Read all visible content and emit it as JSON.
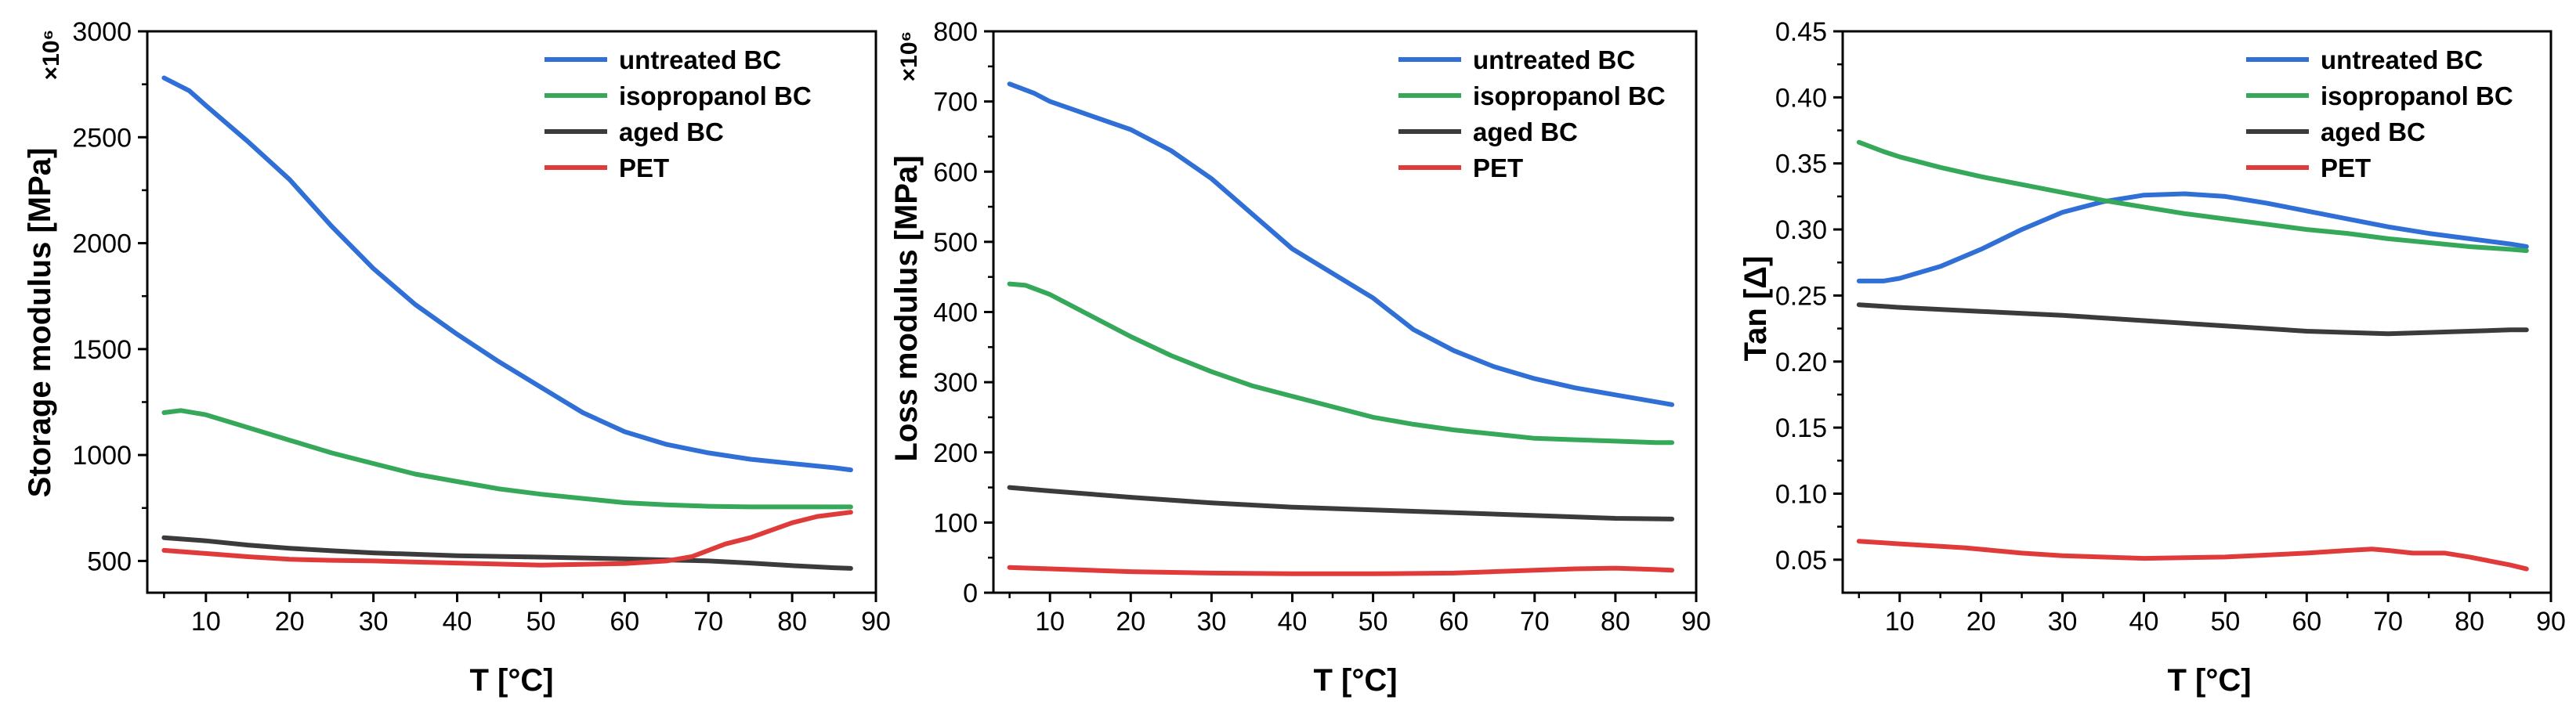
{
  "chart_data": [
    {
      "type": "line",
      "xlabel": "T [°C]",
      "ylabel": "Storage modulus [MPa]",
      "y_multiplier": "×10⁶",
      "xlim": [
        3,
        90
      ],
      "ylim": [
        350,
        3000
      ],
      "xticks": [
        10,
        20,
        30,
        40,
        50,
        60,
        70,
        80,
        90
      ],
      "yticks": [
        500,
        1000,
        1500,
        2000,
        2500,
        3000
      ],
      "legend_position": "top-right",
      "series": [
        {
          "name": "untreated BC",
          "color": "#2f6fd6",
          "x": [
            5,
            8,
            10,
            15,
            20,
            25,
            30,
            35,
            40,
            45,
            50,
            55,
            60,
            65,
            70,
            75,
            80,
            85,
            87
          ],
          "y": [
            2780,
            2720,
            2650,
            2480,
            2300,
            2080,
            1880,
            1710,
            1570,
            1440,
            1320,
            1200,
            1110,
            1050,
            1010,
            980,
            960,
            940,
            930
          ]
        },
        {
          "name": "isopropanol BC",
          "color": "#36a85a",
          "x": [
            5,
            7,
            10,
            15,
            20,
            25,
            30,
            35,
            40,
            45,
            50,
            55,
            60,
            65,
            70,
            75,
            80,
            85,
            87
          ],
          "y": [
            1200,
            1210,
            1190,
            1130,
            1070,
            1010,
            960,
            910,
            875,
            840,
            815,
            795,
            775,
            765,
            758,
            755,
            755,
            755,
            755
          ]
        },
        {
          "name": "aged BC",
          "color": "#3b3b3b",
          "x": [
            5,
            10,
            15,
            20,
            25,
            30,
            40,
            50,
            60,
            65,
            70,
            75,
            80,
            85,
            87
          ],
          "y": [
            610,
            595,
            575,
            560,
            548,
            538,
            525,
            518,
            510,
            505,
            500,
            490,
            478,
            468,
            465
          ]
        },
        {
          "name": "PET",
          "color": "#e03b3b",
          "x": [
            5,
            10,
            15,
            20,
            25,
            30,
            40,
            50,
            60,
            65,
            68,
            70,
            72,
            75,
            80,
            83,
            87
          ],
          "y": [
            550,
            535,
            520,
            508,
            503,
            500,
            490,
            480,
            488,
            500,
            520,
            550,
            580,
            610,
            680,
            710,
            730
          ]
        }
      ]
    },
    {
      "type": "line",
      "xlabel": "T [°C]",
      "ylabel": "Loss modulus [MPa]",
      "y_multiplier": "×10⁶",
      "xlim": [
        3,
        90
      ],
      "ylim": [
        0,
        800
      ],
      "xticks": [
        10,
        20,
        30,
        40,
        50,
        60,
        70,
        80,
        90
      ],
      "yticks": [
        0,
        100,
        200,
        300,
        400,
        500,
        600,
        700,
        800
      ],
      "legend_position": "top-right",
      "series": [
        {
          "name": "untreated BC",
          "color": "#2f6fd6",
          "x": [
            5,
            8,
            10,
            15,
            20,
            25,
            30,
            35,
            40,
            45,
            50,
            55,
            60,
            65,
            70,
            75,
            80,
            85,
            87
          ],
          "y": [
            725,
            712,
            700,
            680,
            660,
            630,
            590,
            540,
            490,
            455,
            420,
            375,
            345,
            322,
            305,
            292,
            282,
            272,
            268
          ]
        },
        {
          "name": "isopropanol BC",
          "color": "#36a85a",
          "x": [
            5,
            7,
            10,
            15,
            20,
            25,
            30,
            35,
            40,
            45,
            50,
            55,
            60,
            65,
            70,
            75,
            80,
            85,
            87
          ],
          "y": [
            440,
            438,
            425,
            395,
            365,
            338,
            315,
            295,
            280,
            265,
            250,
            240,
            232,
            226,
            220,
            218,
            216,
            214,
            214
          ]
        },
        {
          "name": "aged BC",
          "color": "#3b3b3b",
          "x": [
            5,
            10,
            20,
            30,
            40,
            50,
            60,
            70,
            80,
            87
          ],
          "y": [
            150,
            145,
            136,
            128,
            122,
            118,
            114,
            110,
            106,
            105
          ]
        },
        {
          "name": "PET",
          "color": "#e03b3b",
          "x": [
            5,
            10,
            20,
            30,
            40,
            50,
            60,
            70,
            75,
            80,
            85,
            87
          ],
          "y": [
            36,
            34,
            30,
            28,
            27,
            27,
            28,
            32,
            34,
            35,
            33,
            32
          ]
        }
      ]
    },
    {
      "type": "line",
      "xlabel": "T [°C]",
      "ylabel": "Tan [Δ]",
      "xlim": [
        3,
        90
      ],
      "ylim": [
        0.025,
        0.45
      ],
      "xticks": [
        10,
        20,
        30,
        40,
        50,
        60,
        70,
        80,
        90
      ],
      "yticks": [
        "0.05",
        "0.10",
        "0.15",
        "0.20",
        "0.25",
        "0.30",
        "0.35",
        "0.40",
        "0.45"
      ],
      "legend_position": "top-right",
      "series": [
        {
          "name": "untreated BC",
          "color": "#2f6fd6",
          "x": [
            5,
            8,
            10,
            15,
            20,
            25,
            30,
            35,
            40,
            45,
            50,
            55,
            60,
            65,
            70,
            75,
            80,
            85,
            87
          ],
          "y": [
            0.261,
            0.261,
            0.263,
            0.272,
            0.285,
            0.3,
            0.313,
            0.321,
            0.326,
            0.327,
            0.325,
            0.32,
            0.314,
            0.308,
            0.302,
            0.297,
            0.293,
            0.289,
            0.287
          ]
        },
        {
          "name": "isopropanol BC",
          "color": "#36a85a",
          "x": [
            5,
            8,
            10,
            15,
            20,
            25,
            30,
            35,
            40,
            45,
            50,
            55,
            60,
            65,
            70,
            75,
            80,
            85,
            87
          ],
          "y": [
            0.366,
            0.359,
            0.355,
            0.347,
            0.34,
            0.334,
            0.328,
            0.322,
            0.317,
            0.312,
            0.308,
            0.304,
            0.3,
            0.297,
            0.293,
            0.29,
            0.287,
            0.285,
            0.284
          ]
        },
        {
          "name": "aged BC",
          "color": "#3b3b3b",
          "x": [
            5,
            10,
            20,
            30,
            40,
            50,
            60,
            65,
            70,
            75,
            80,
            85,
            87
          ],
          "y": [
            0.243,
            0.241,
            0.238,
            0.235,
            0.231,
            0.227,
            0.223,
            0.222,
            0.221,
            0.222,
            0.223,
            0.224,
            0.224
          ]
        },
        {
          "name": "PET",
          "color": "#e03b3b",
          "x": [
            5,
            10,
            18,
            25,
            30,
            40,
            50,
            60,
            65,
            68,
            70,
            73,
            77,
            80,
            85,
            87
          ],
          "y": [
            0.064,
            0.062,
            0.059,
            0.055,
            0.053,
            0.051,
            0.052,
            0.055,
            0.057,
            0.058,
            0.057,
            0.055,
            0.055,
            0.052,
            0.046,
            0.043
          ]
        }
      ]
    }
  ]
}
